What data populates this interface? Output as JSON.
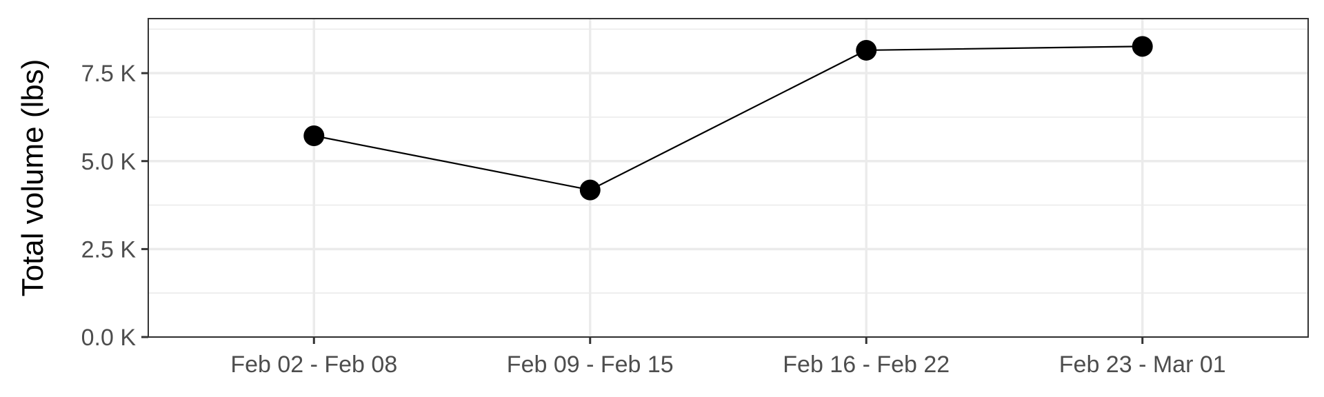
{
  "chart_data": {
    "type": "line",
    "title": "",
    "xlabel": "",
    "ylabel": "Total volume (lbs)",
    "categories": [
      "Feb 02 - Feb 08",
      "Feb 09 - Feb 15",
      "Feb 16 - Feb 22",
      "Feb 23 - Mar 01"
    ],
    "series": [
      {
        "values": [
          5720,
          4180,
          8150,
          8260
        ]
      }
    ],
    "ylim": [
      0,
      9050
    ],
    "yticks": [
      0,
      2500,
      5000,
      7500
    ],
    "ytick_labels": [
      "0.0 K",
      "2.5 K",
      "5.0 K",
      "7.5 K"
    ],
    "grid": true,
    "legend": "none",
    "colors": {
      "line": "#000000",
      "point": "#000000",
      "grid": "#ebebeb",
      "panel_border": "#333333",
      "tick_text": "#4d4d4d"
    }
  }
}
